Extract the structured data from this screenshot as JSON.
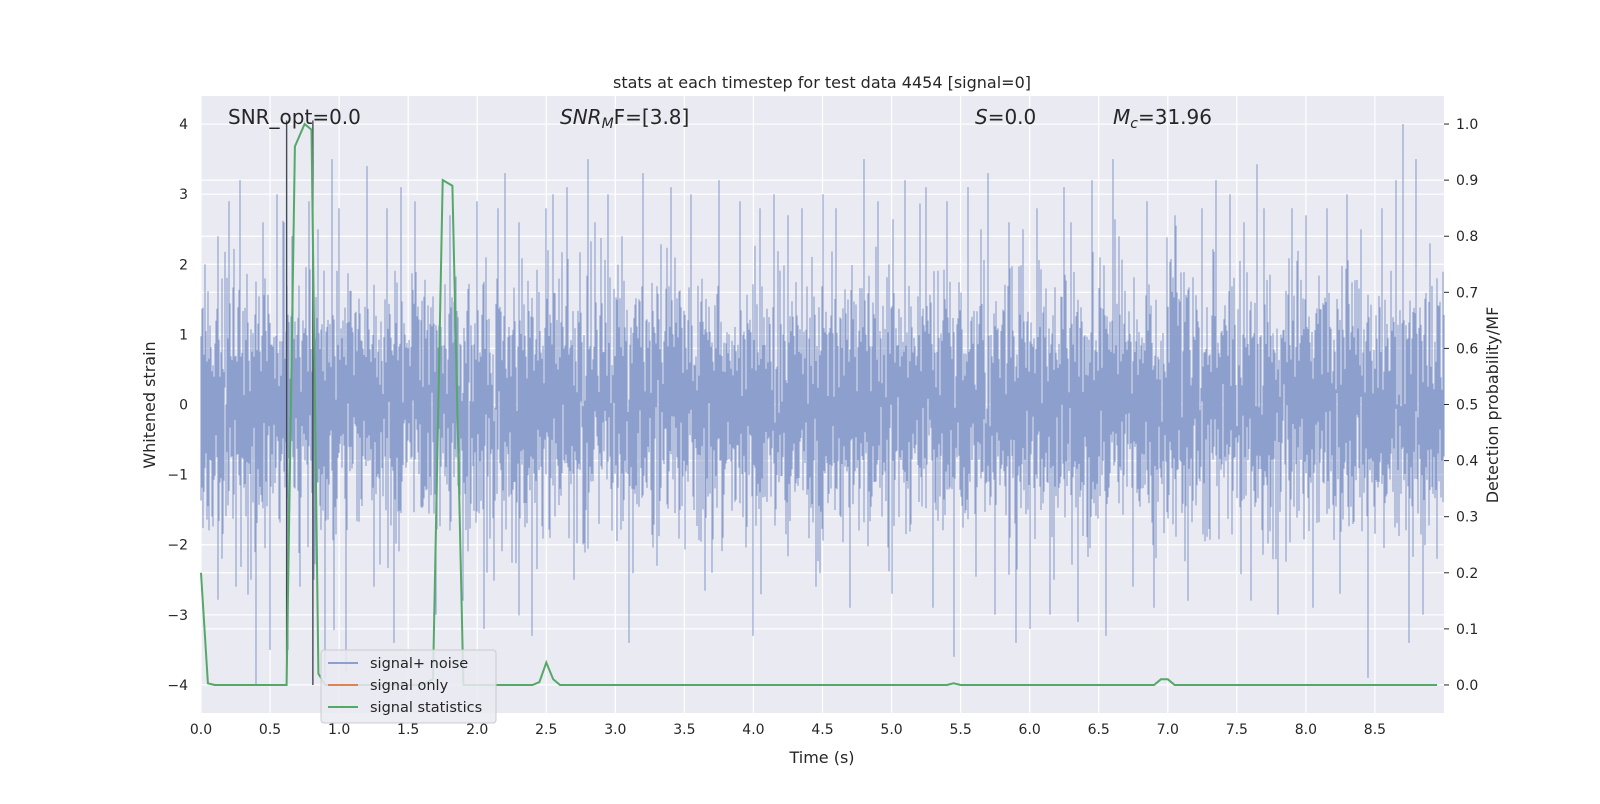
{
  "chart_data": {
    "type": "line",
    "title": "stats at each timestep for test data 4454 [signal=0]",
    "xlabel": "Time (s)",
    "ylabel_left": "Whitened strain",
    "ylabel_right": "Detection probability/MF",
    "xlim": [
      0.0,
      9.0
    ],
    "ylim_left": [
      -4.4,
      4.4
    ],
    "ylim_right": [
      -0.05,
      1.05
    ],
    "grid": true,
    "legend_placement": "lower-left",
    "x_ticks": [
      "0.0",
      "0.5",
      "1.0",
      "1.5",
      "2.0",
      "2.5",
      "3.0",
      "3.5",
      "4.0",
      "4.5",
      "5.0",
      "5.5",
      "6.0",
      "6.5",
      "7.0",
      "7.5",
      "8.0",
      "8.5"
    ],
    "y_ticks_left": [
      "4",
      "3",
      "2",
      "1",
      "0",
      "−1",
      "−2",
      "−3",
      "−4"
    ],
    "y_ticks_right": [
      "1.0",
      "0.9",
      "0.8",
      "0.7",
      "0.6",
      "0.5",
      "0.4",
      "0.3",
      "0.2",
      "0.1",
      "0.0"
    ],
    "annotations": {
      "snr_opt": "SNR_opt=0.0",
      "snr_mf_main": "SNR",
      "snr_mf_sub": "M",
      "snr_mf_rest": "F=[3.8]",
      "s_main": "S",
      "s_rest": "=0.0",
      "mc_main": "M",
      "mc_sub": "c",
      "mc_rest": "=31.96"
    },
    "vertical_markers_s": [
      0.62,
      0.81
    ],
    "series": [
      {
        "name": "signal+ noise",
        "color": "#8c9fcd",
        "noise_sigma": 0.8,
        "peak_samples": [
          [
            0.03,
            2.0
          ],
          [
            0.08,
            -1.6
          ],
          [
            0.12,
            2.4
          ],
          [
            0.15,
            -2.2
          ],
          [
            0.2,
            2.9
          ],
          [
            0.25,
            -2.6
          ],
          [
            0.28,
            3.2
          ],
          [
            0.36,
            -2.5
          ],
          [
            0.4,
            3.3
          ],
          [
            0.4,
            -4.0
          ],
          [
            0.45,
            2.6
          ],
          [
            0.5,
            -3.5
          ],
          [
            0.55,
            3.0
          ],
          [
            0.6,
            2.6
          ],
          [
            0.63,
            -3.5
          ],
          [
            0.66,
            2.4
          ],
          [
            0.72,
            -2.6
          ],
          [
            0.78,
            2.9
          ],
          [
            0.82,
            -2.5
          ],
          [
            0.85,
            2.5
          ],
          [
            0.9,
            -3.9
          ],
          [
            0.95,
            3.5
          ],
          [
            1.0,
            2.8
          ],
          [
            1.05,
            -3.8
          ],
          [
            1.2,
            3.4
          ],
          [
            1.25,
            -2.6
          ],
          [
            1.35,
            2.8
          ],
          [
            1.4,
            -3.4
          ],
          [
            1.45,
            3.1
          ],
          [
            1.55,
            2.9
          ],
          [
            1.7,
            -3.0
          ],
          [
            1.8,
            2.7
          ],
          [
            1.9,
            -2.8
          ],
          [
            2.0,
            2.9
          ],
          [
            2.05,
            -3.2
          ],
          [
            2.15,
            2.8
          ],
          [
            2.2,
            3.3
          ],
          [
            2.3,
            2.6
          ],
          [
            2.4,
            -3.3
          ],
          [
            2.5,
            2.8
          ],
          [
            2.55,
            3.0
          ],
          [
            2.65,
            3.1
          ],
          [
            2.7,
            -2.5
          ],
          [
            2.8,
            3.5
          ],
          [
            2.85,
            2.6
          ],
          [
            2.95,
            3.0
          ],
          [
            3.05,
            2.4
          ],
          [
            3.1,
            -3.4
          ],
          [
            3.2,
            3.3
          ],
          [
            3.3,
            -2.3
          ],
          [
            3.4,
            3.1
          ],
          [
            3.55,
            3.0
          ],
          [
            3.7,
            -2.4
          ],
          [
            3.75,
            3.2
          ],
          [
            3.9,
            2.9
          ],
          [
            4.0,
            -3.3
          ],
          [
            4.05,
            2.8
          ],
          [
            4.15,
            3.0
          ],
          [
            4.25,
            2.7
          ],
          [
            4.35,
            2.8
          ],
          [
            4.45,
            -2.6
          ],
          [
            4.5,
            3.0
          ],
          [
            4.6,
            2.8
          ],
          [
            4.7,
            -2.9
          ],
          [
            4.8,
            3.5
          ],
          [
            4.9,
            2.9
          ],
          [
            5.0,
            -2.7
          ],
          [
            5.1,
            3.2
          ],
          [
            5.25,
            3.1
          ],
          [
            5.3,
            -2.9
          ],
          [
            5.4,
            2.9
          ],
          [
            5.45,
            -3.6
          ],
          [
            5.55,
            3.1
          ],
          [
            5.65,
            2.5
          ],
          [
            5.7,
            3.3
          ],
          [
            5.75,
            -3.0
          ],
          [
            5.85,
            2.6
          ],
          [
            5.9,
            -3.4
          ],
          [
            5.95,
            2.5
          ],
          [
            6.0,
            -3.2
          ],
          [
            6.05,
            2.8
          ],
          [
            6.15,
            -3.0
          ],
          [
            6.25,
            3.1
          ],
          [
            6.3,
            2.6
          ],
          [
            6.35,
            -3.1
          ],
          [
            6.45,
            3.2
          ],
          [
            6.55,
            -3.3
          ],
          [
            6.6,
            3.5
          ],
          [
            6.65,
            2.4
          ],
          [
            6.75,
            -2.6
          ],
          [
            6.85,
            2.9
          ],
          [
            6.9,
            -2.9
          ],
          [
            7.05,
            2.7
          ],
          [
            7.15,
            -2.8
          ],
          [
            7.25,
            2.8
          ],
          [
            7.35,
            3.2
          ],
          [
            7.45,
            3.0
          ],
          [
            7.55,
            2.6
          ],
          [
            7.6,
            -2.8
          ],
          [
            7.7,
            2.8
          ],
          [
            7.8,
            -3.0
          ],
          [
            7.9,
            2.8
          ],
          [
            8.0,
            2.7
          ],
          [
            8.05,
            -2.9
          ],
          [
            8.15,
            2.8
          ],
          [
            8.25,
            -2.7
          ],
          [
            8.3,
            3.0
          ],
          [
            8.4,
            2.5
          ],
          [
            8.45,
            -3.9
          ],
          [
            8.55,
            2.8
          ],
          [
            8.65,
            3.2
          ],
          [
            8.7,
            4.0
          ],
          [
            8.75,
            -3.4
          ],
          [
            8.8,
            3.5
          ],
          [
            8.85,
            -3.0
          ],
          [
            8.9,
            2.3
          ],
          [
            8.95,
            -2.2
          ]
        ]
      },
      {
        "name": "signal only",
        "color": "#dd8452",
        "values": []
      },
      {
        "name": "signal statistics",
        "color": "#55a868",
        "x": [
          0.0,
          0.05,
          0.1,
          0.15,
          0.2,
          0.25,
          0.3,
          0.35,
          0.4,
          0.45,
          0.5,
          0.55,
          0.6,
          0.62,
          0.68,
          0.75,
          0.8,
          0.85,
          0.9,
          0.95,
          1.0,
          1.2,
          1.4,
          1.6,
          1.68,
          1.75,
          1.82,
          1.9,
          2.0,
          2.2,
          2.4,
          2.45,
          2.5,
          2.55,
          2.6,
          2.7,
          3.0,
          3.5,
          4.0,
          4.5,
          5.0,
          5.3,
          5.4,
          5.45,
          5.5,
          5.6,
          6.0,
          6.5,
          6.9,
          6.95,
          7.0,
          7.05,
          7.1,
          7.5,
          8.0,
          8.5,
          8.95
        ],
        "y": [
          0.2,
          0.003,
          0.0,
          0.0,
          0.0,
          0.0,
          0.0,
          0.0,
          0.0,
          0.0,
          0.0,
          0.0,
          0.0,
          0.0,
          0.96,
          1.0,
          0.99,
          0.02,
          0.0,
          0.0,
          0.0,
          0.0,
          0.0,
          0.0,
          0.01,
          0.9,
          0.89,
          0.0,
          0.0,
          0.0,
          0.0,
          0.005,
          0.04,
          0.01,
          0.0,
          0.0,
          0.0,
          0.0,
          0.0,
          0.0,
          0.0,
          0.0,
          0.0,
          0.003,
          0.0,
          0.0,
          0.0,
          0.0,
          0.0,
          0.01,
          0.01,
          0.0,
          0.0,
          0.0,
          0.0,
          0.0,
          0.0
        ]
      }
    ]
  }
}
